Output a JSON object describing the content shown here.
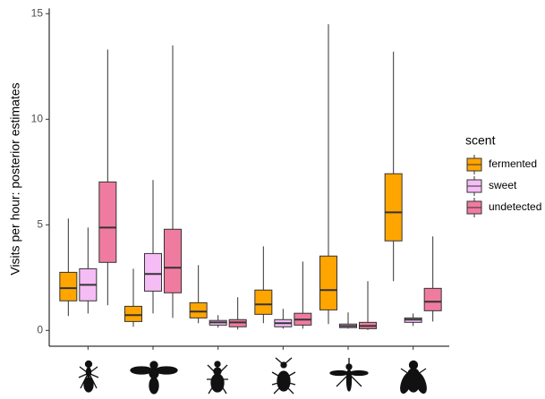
{
  "chart_data": {
    "type": "boxplot",
    "y_label": "Visits per hour: posterior estimates",
    "legend_title": "scent",
    "categories": [
      null,
      null,
      null,
      null,
      null,
      null
    ],
    "ylim": [
      -0.75,
      15.25
    ],
    "yticks": [
      0,
      5,
      10,
      15
    ],
    "grid": false,
    "series": [
      {
        "name": "fermented",
        "color": "#FFA500",
        "values": [
          {
            "low": 0.68,
            "q1": 1.4,
            "median": 2.0,
            "q3": 2.75,
            "high": 5.3
          },
          {
            "low": 0.17,
            "q1": 0.42,
            "median": 0.72,
            "q3": 1.14,
            "high": 2.92
          },
          {
            "low": 0.34,
            "q1": 0.59,
            "median": 0.89,
            "q3": 1.31,
            "high": 3.09
          },
          {
            "low": 0.34,
            "q1": 0.76,
            "median": 1.23,
            "q3": 1.91,
            "high": 3.98
          },
          {
            "low": 0.3,
            "q1": 0.97,
            "median": 1.91,
            "q3": 3.52,
            "high": 14.5
          },
          {
            "low": 2.33,
            "q1": 4.24,
            "median": 5.59,
            "q3": 7.42,
            "high": 13.2
          }
        ]
      },
      {
        "name": "sweet",
        "color": "#F5BCF5",
        "values": [
          {
            "low": 0.8,
            "q1": 1.4,
            "median": 2.16,
            "q3": 2.92,
            "high": 4.87
          },
          {
            "low": 0.8,
            "q1": 1.86,
            "median": 2.67,
            "q3": 3.64,
            "high": 7.12
          },
          {
            "low": 0.13,
            "q1": 0.25,
            "median": 0.38,
            "q3": 0.47,
            "high": 0.72
          },
          {
            "low": 0.08,
            "q1": 0.17,
            "median": 0.34,
            "q3": 0.51,
            "high": 1.02
          },
          {
            "low": 0.08,
            "q1": 0.13,
            "median": 0.21,
            "q3": 0.3,
            "high": 0.85
          },
          {
            "low": 0.21,
            "q1": 0.38,
            "median": 0.51,
            "q3": 0.59,
            "high": 0.8
          }
        ]
      },
      {
        "name": "undetected",
        "color": "#F07BA0",
        "values": [
          {
            "low": 1.19,
            "q1": 3.22,
            "median": 4.87,
            "q3": 7.03,
            "high": 13.3
          },
          {
            "low": 0.59,
            "q1": 1.78,
            "median": 2.97,
            "q3": 4.79,
            "high": 13.5
          },
          {
            "low": 0.04,
            "q1": 0.17,
            "median": 0.38,
            "q3": 0.51,
            "high": 1.57
          },
          {
            "low": 0.08,
            "q1": 0.25,
            "median": 0.51,
            "q3": 0.81,
            "high": 3.26
          },
          {
            "low": 0.02,
            "q1": 0.08,
            "median": 0.21,
            "q3": 0.38,
            "high": 2.33
          },
          {
            "low": 0.42,
            "q1": 0.93,
            "median": 1.36,
            "q3": 1.99,
            "high": 4.45
          }
        ]
      }
    ]
  }
}
